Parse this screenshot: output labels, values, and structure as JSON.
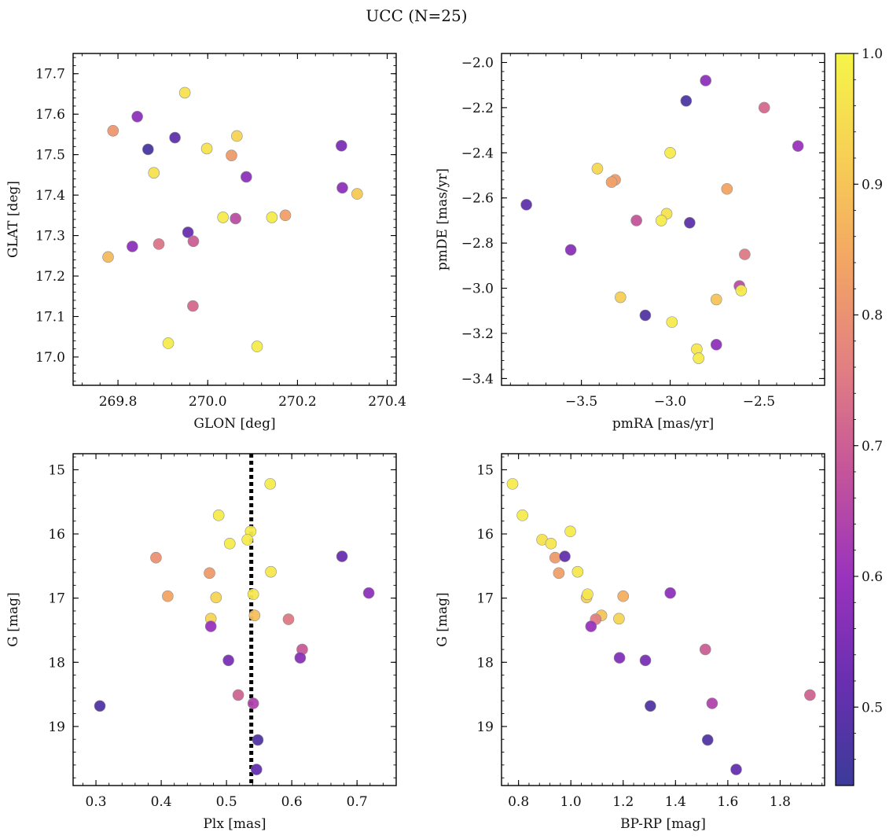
{
  "figure": {
    "title": "UCC (N=25)"
  },
  "colorbar": {
    "vmin": 0.44,
    "vmax": 1.0,
    "ticks": [
      "0.5",
      "0.6",
      "0.7",
      "0.8",
      "0.9",
      "1.0"
    ],
    "colormap": "plasma-like",
    "stops": [
      "#3b3b99",
      "#6a2fb0",
      "#9a33bd",
      "#c4559a",
      "#e27f82",
      "#f3a564",
      "#f7cf55",
      "#f5f549"
    ]
  },
  "chart_data": [
    {
      "type": "scatter",
      "xlabel": "GLON [deg]",
      "ylabel": "GLAT [deg]",
      "xlim": [
        269.7,
        270.42
      ],
      "ylim": [
        16.93,
        17.75
      ],
      "yinvert": false,
      "xticks": [
        "269.8",
        "270.0",
        "270.2",
        "270.4"
      ],
      "yticks": [
        "17.0",
        "17.1",
        "17.2",
        "17.3",
        "17.4",
        "17.5",
        "17.6",
        "17.7"
      ],
      "points": [
        {
          "x": 269.789,
          "y": 17.559,
          "c": 0.81
        },
        {
          "x": 269.843,
          "y": 17.594,
          "c": 0.58
        },
        {
          "x": 269.867,
          "y": 17.513,
          "c": 0.46
        },
        {
          "x": 269.927,
          "y": 17.542,
          "c": 0.5
        },
        {
          "x": 269.949,
          "y": 17.653,
          "c": 0.96
        },
        {
          "x": 269.88,
          "y": 17.455,
          "c": 0.96
        },
        {
          "x": 269.998,
          "y": 17.515,
          "c": 0.96
        },
        {
          "x": 270.065,
          "y": 17.546,
          "c": 0.93
        },
        {
          "x": 270.053,
          "y": 17.498,
          "c": 0.82
        },
        {
          "x": 270.086,
          "y": 17.445,
          "c": 0.58
        },
        {
          "x": 270.298,
          "y": 17.522,
          "c": 0.55
        },
        {
          "x": 270.3,
          "y": 17.418,
          "c": 0.58
        },
        {
          "x": 270.333,
          "y": 17.403,
          "c": 0.91
        },
        {
          "x": 270.034,
          "y": 17.345,
          "c": 0.98
        },
        {
          "x": 270.062,
          "y": 17.342,
          "c": 0.66
        },
        {
          "x": 270.143,
          "y": 17.345,
          "c": 0.98
        },
        {
          "x": 270.173,
          "y": 17.35,
          "c": 0.83
        },
        {
          "x": 269.956,
          "y": 17.308,
          "c": 0.52
        },
        {
          "x": 269.968,
          "y": 17.286,
          "c": 0.7
        },
        {
          "x": 269.778,
          "y": 17.247,
          "c": 0.88
        },
        {
          "x": 269.832,
          "y": 17.273,
          "c": 0.58
        },
        {
          "x": 269.891,
          "y": 17.279,
          "c": 0.74
        },
        {
          "x": 269.967,
          "y": 17.126,
          "c": 0.72
        },
        {
          "x": 269.912,
          "y": 17.034,
          "c": 0.98
        },
        {
          "x": 270.11,
          "y": 17.026,
          "c": 0.98
        }
      ]
    },
    {
      "type": "scatter",
      "xlabel": "pmRA [mas/yr]",
      "ylabel": "pmDE [mas/yr]",
      "xlim": [
        -3.95,
        -2.13
      ],
      "ylim": [
        -3.43,
        -1.96
      ],
      "yinvert": false,
      "xticks": [
        "−3.5",
        "−3.0",
        "−2.5"
      ],
      "yticks": [
        "−3.4",
        "−3.2",
        "−3.0",
        "−2.8",
        "−2.6",
        "−2.4",
        "−2.2",
        "−2.0"
      ],
      "points": [
        {
          "x": -2.8,
          "y": -2.08,
          "c": 0.58
        },
        {
          "x": -2.91,
          "y": -2.17,
          "c": 0.47
        },
        {
          "x": -2.47,
          "y": -2.2,
          "c": 0.72
        },
        {
          "x": -2.28,
          "y": -2.37,
          "c": 0.6
        },
        {
          "x": -3.41,
          "y": -2.47,
          "c": 0.94
        },
        {
          "x": -3.0,
          "y": -2.4,
          "c": 0.98
        },
        {
          "x": -3.31,
          "y": -2.52,
          "c": 0.82
        },
        {
          "x": -3.33,
          "y": -2.53,
          "c": 0.83
        },
        {
          "x": -2.68,
          "y": -2.56,
          "c": 0.84
        },
        {
          "x": -3.81,
          "y": -2.63,
          "c": 0.5
        },
        {
          "x": -3.02,
          "y": -2.67,
          "c": 0.96
        },
        {
          "x": -3.05,
          "y": -2.7,
          "c": 0.98
        },
        {
          "x": -3.19,
          "y": -2.7,
          "c": 0.68
        },
        {
          "x": -2.89,
          "y": -2.71,
          "c": 0.5
        },
        {
          "x": -3.56,
          "y": -2.83,
          "c": 0.57
        },
        {
          "x": -2.58,
          "y": -2.85,
          "c": 0.75
        },
        {
          "x": -2.61,
          "y": -2.99,
          "c": 0.66
        },
        {
          "x": -2.6,
          "y": -3.01,
          "c": 0.98
        },
        {
          "x": -3.28,
          "y": -3.04,
          "c": 0.92
        },
        {
          "x": -2.74,
          "y": -3.05,
          "c": 0.9
        },
        {
          "x": -3.14,
          "y": -3.12,
          "c": 0.48
        },
        {
          "x": -2.99,
          "y": -3.15,
          "c": 0.98
        },
        {
          "x": -2.74,
          "y": -3.25,
          "c": 0.58
        },
        {
          "x": -2.85,
          "y": -3.27,
          "c": 0.97
        },
        {
          "x": -2.84,
          "y": -3.31,
          "c": 0.98
        }
      ]
    },
    {
      "type": "scatter",
      "xlabel": "Plx [mas]",
      "ylabel": "G [mag]",
      "xlim": [
        0.265,
        0.76
      ],
      "ylim": [
        19.92,
        14.75
      ],
      "yinvert": true,
      "xticks": [
        "0.3",
        "0.4",
        "0.5",
        "0.6",
        "0.7"
      ],
      "yticks": [
        "15",
        "16",
        "17",
        "18",
        "19"
      ],
      "vline": 0.538,
      "points": [
        {
          "x": 0.567,
          "y": 15.22,
          "c": 0.98
        },
        {
          "x": 0.488,
          "y": 15.71,
          "c": 0.98
        },
        {
          "x": 0.537,
          "y": 15.96,
          "c": 0.98
        },
        {
          "x": 0.532,
          "y": 16.09,
          "c": 0.98
        },
        {
          "x": 0.505,
          "y": 16.15,
          "c": 0.98
        },
        {
          "x": 0.392,
          "y": 16.37,
          "c": 0.8
        },
        {
          "x": 0.677,
          "y": 16.35,
          "c": 0.52
        },
        {
          "x": 0.474,
          "y": 16.61,
          "c": 0.82
        },
        {
          "x": 0.568,
          "y": 16.59,
          "c": 0.97
        },
        {
          "x": 0.41,
          "y": 16.97,
          "c": 0.84
        },
        {
          "x": 0.484,
          "y": 16.99,
          "c": 0.93
        },
        {
          "x": 0.541,
          "y": 16.94,
          "c": 0.97
        },
        {
          "x": 0.718,
          "y": 16.92,
          "c": 0.58
        },
        {
          "x": 0.543,
          "y": 17.27,
          "c": 0.89
        },
        {
          "x": 0.476,
          "y": 17.32,
          "c": 0.93
        },
        {
          "x": 0.595,
          "y": 17.33,
          "c": 0.75
        },
        {
          "x": 0.476,
          "y": 17.44,
          "c": 0.6
        },
        {
          "x": 0.616,
          "y": 17.8,
          "c": 0.69
        },
        {
          "x": 0.613,
          "y": 17.93,
          "c": 0.57
        },
        {
          "x": 0.503,
          "y": 17.97,
          "c": 0.55
        },
        {
          "x": 0.518,
          "y": 18.51,
          "c": 0.71
        },
        {
          "x": 0.541,
          "y": 18.64,
          "c": 0.64
        },
        {
          "x": 0.306,
          "y": 18.68,
          "c": 0.48
        },
        {
          "x": 0.548,
          "y": 19.21,
          "c": 0.48
        },
        {
          "x": 0.546,
          "y": 19.67,
          "c": 0.51
        }
      ]
    },
    {
      "type": "scatter",
      "xlabel": "BP-RP [mag]",
      "ylabel": "G [mag]",
      "xlim": [
        0.735,
        1.97
      ],
      "ylim": [
        19.92,
        14.75
      ],
      "yinvert": true,
      "xticks": [
        "0.8",
        "1.0",
        "1.2",
        "1.4",
        "1.6",
        "1.8"
      ],
      "yticks": [
        "15",
        "16",
        "17",
        "18",
        "19"
      ],
      "points": [
        {
          "x": 0.777,
          "y": 15.22,
          "c": 0.98
        },
        {
          "x": 0.815,
          "y": 15.71,
          "c": 0.98
        },
        {
          "x": 0.89,
          "y": 16.09,
          "c": 0.96
        },
        {
          "x": 0.924,
          "y": 16.15,
          "c": 0.97
        },
        {
          "x": 0.998,
          "y": 15.96,
          "c": 0.98
        },
        {
          "x": 0.94,
          "y": 16.37,
          "c": 0.82
        },
        {
          "x": 0.977,
          "y": 16.35,
          "c": 0.51
        },
        {
          "x": 0.954,
          "y": 16.61,
          "c": 0.83
        },
        {
          "x": 1.026,
          "y": 16.59,
          "c": 0.97
        },
        {
          "x": 1.06,
          "y": 16.99,
          "c": 0.92
        },
        {
          "x": 1.064,
          "y": 16.94,
          "c": 0.97
        },
        {
          "x": 1.2,
          "y": 16.97,
          "c": 0.86
        },
        {
          "x": 1.38,
          "y": 16.92,
          "c": 0.58
        },
        {
          "x": 1.117,
          "y": 17.27,
          "c": 0.9
        },
        {
          "x": 1.095,
          "y": 17.33,
          "c": 0.76
        },
        {
          "x": 1.184,
          "y": 17.32,
          "c": 0.93
        },
        {
          "x": 1.077,
          "y": 17.44,
          "c": 0.6
        },
        {
          "x": 1.514,
          "y": 17.8,
          "c": 0.7
        },
        {
          "x": 1.186,
          "y": 17.93,
          "c": 0.56
        },
        {
          "x": 1.285,
          "y": 17.97,
          "c": 0.55
        },
        {
          "x": 1.914,
          "y": 18.51,
          "c": 0.71
        },
        {
          "x": 1.54,
          "y": 18.64,
          "c": 0.64
        },
        {
          "x": 1.304,
          "y": 18.68,
          "c": 0.48
        },
        {
          "x": 1.523,
          "y": 19.21,
          "c": 0.48
        },
        {
          "x": 1.632,
          "y": 19.67,
          "c": 0.51
        }
      ]
    }
  ]
}
